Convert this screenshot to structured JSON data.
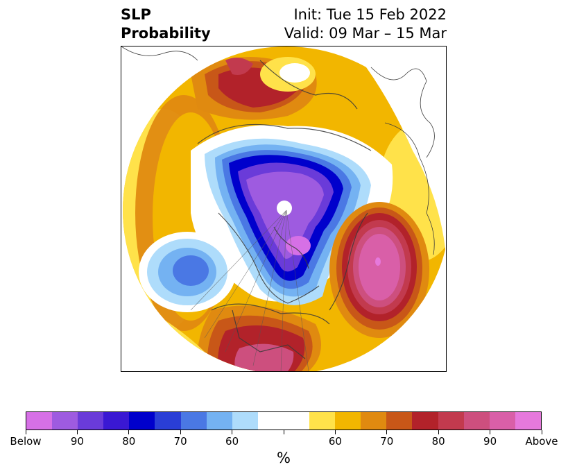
{
  "header": {
    "variable_line1": "SLP",
    "variable_line2": "Probability",
    "init_label": "Init: Tue 15 Feb 2022",
    "valid_label": "Valid: 09 Mar – 15 Mar"
  },
  "colorbar": {
    "unit": "%",
    "colors": [
      "#d670e6",
      "#9e5be0",
      "#6a3bd9",
      "#3a18d3",
      "#0000cc",
      "#2a3ed6",
      "#4a78e4",
      "#74b2f2",
      "#aedcfb",
      "#ffffff",
      "#ffffff",
      "#ffe24a",
      "#f2b600",
      "#e08a10",
      "#c85718",
      "#b2222a",
      "#c23a4e",
      "#cd4f7e",
      "#d95fa8",
      "#e679dc"
    ],
    "tick_labels": [
      "Below",
      "90",
      "80",
      "70",
      "60",
      "",
      "60",
      "70",
      "80",
      "90",
      "Above"
    ]
  },
  "map": {
    "projection": "north-polar-stereographic",
    "field": "sea-level-pressure-probability"
  }
}
